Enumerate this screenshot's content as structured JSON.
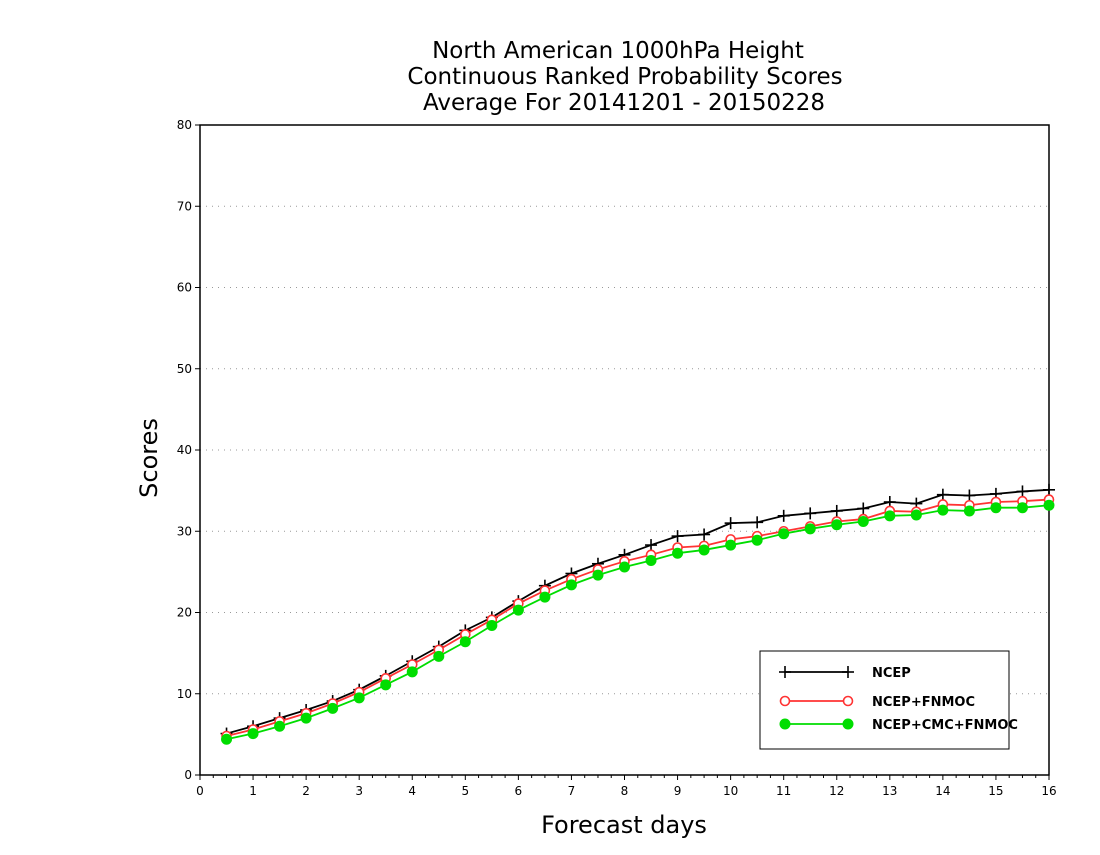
{
  "chart_data": {
    "type": "line",
    "title_lines": [
      "North American 1000hPa Height",
      "Continuous Ranked Probability Scores",
      "Average For 20141201 - 20150228"
    ],
    "xlabel": "Forecast days",
    "ylabel": "Scores",
    "xlim": [
      0,
      16
    ],
    "ylim": [
      0,
      80
    ],
    "x_ticks": [
      "0",
      "1",
      "2",
      "3",
      "4",
      "5",
      "6",
      "7",
      "8",
      "9",
      "10",
      "11",
      "12",
      "13",
      "14",
      "15",
      "16"
    ],
    "y_ticks": [
      "0",
      "10",
      "20",
      "30",
      "40",
      "50",
      "60",
      "70",
      "80"
    ],
    "grid": "horizontal dotted",
    "legend_position": "bottom-right",
    "x": [
      0.5,
      1,
      1.5,
      2,
      2.5,
      3,
      3.5,
      4,
      4.5,
      5,
      5.5,
      6,
      6.5,
      7,
      7.5,
      8,
      8.5,
      9,
      9.5,
      10,
      10.5,
      11,
      11.5,
      12,
      12.5,
      13,
      13.5,
      14,
      14.5,
      15,
      15.5,
      16
    ],
    "series": [
      {
        "name": "NCEP",
        "color": "#000000",
        "marker": "plus",
        "values": [
          5.1,
          6.0,
          7.0,
          8.0,
          9.1,
          10.5,
          12.2,
          14.0,
          15.8,
          17.8,
          19.4,
          21.4,
          23.3,
          24.8,
          26.0,
          27.1,
          28.3,
          29.4,
          29.6,
          31.0,
          31.1,
          31.9,
          32.2,
          32.5,
          32.8,
          33.6,
          33.4,
          34.5,
          34.4,
          34.6,
          34.9,
          35.1
        ]
      },
      {
        "name": "NCEP+FNMOC",
        "color": "#ff3333",
        "marker": "open-circle",
        "values": [
          4.8,
          5.6,
          6.6,
          7.6,
          8.8,
          10.2,
          11.9,
          13.6,
          15.4,
          17.3,
          19.1,
          21.1,
          22.7,
          24.1,
          25.3,
          26.3,
          27.1,
          28.0,
          28.2,
          29.0,
          29.4,
          30.0,
          30.6,
          31.2,
          31.5,
          32.5,
          32.4,
          33.3,
          33.2,
          33.6,
          33.7,
          33.9
        ]
      },
      {
        "name": "NCEP+CMC+FNMOC",
        "color": "#00dd00",
        "marker": "filled-circle",
        "values": [
          4.4,
          5.1,
          6.0,
          7.0,
          8.2,
          9.5,
          11.1,
          12.7,
          14.6,
          16.4,
          18.4,
          20.3,
          21.9,
          23.4,
          24.6,
          25.6,
          26.4,
          27.3,
          27.7,
          28.3,
          28.9,
          29.7,
          30.3,
          30.8,
          31.2,
          31.9,
          32.0,
          32.6,
          32.5,
          32.9,
          32.9,
          33.2
        ]
      }
    ]
  }
}
